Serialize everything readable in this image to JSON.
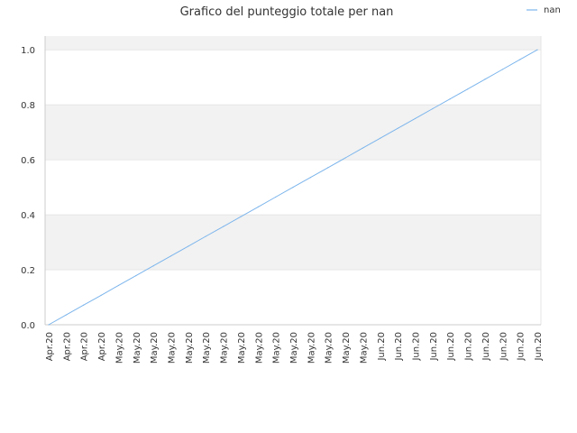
{
  "chart_data": {
    "type": "line",
    "title": "Grafico del punteggio totale per nan",
    "xlabel": "",
    "ylabel": "",
    "categories": [
      "Apr.20",
      "Apr.20",
      "Apr.20",
      "Apr.20",
      "May.20",
      "May.20",
      "May.20",
      "May.20",
      "May.20",
      "May.20",
      "May.20",
      "May.20",
      "May.20",
      "May.20",
      "May.20",
      "May.20",
      "May.20",
      "May.20",
      "May.20",
      "Jun.20",
      "Jun.20",
      "Jun.20",
      "Jun.20",
      "Jun.20",
      "Jun.20",
      "Jun.20",
      "Jun.20",
      "Jun.20",
      "Jun.20"
    ],
    "ylim": [
      0,
      1.05
    ],
    "yticks": [
      "0.0",
      "0.2",
      "0.4",
      "0.6",
      "0.8",
      "1.0"
    ],
    "ytick_values": [
      0,
      0.2,
      0.4,
      0.6,
      0.8,
      1.0
    ],
    "grid": "horizontal alternating bands",
    "legend_position": "top-right",
    "series": [
      {
        "name": "nan",
        "color": "#7cb5ec",
        "values": [
          0.0,
          0.0357,
          0.0714,
          0.1071,
          0.1429,
          0.1786,
          0.2143,
          0.25,
          0.2857,
          0.3214,
          0.3571,
          0.3929,
          0.4286,
          0.4643,
          0.5,
          0.5357,
          0.5714,
          0.6071,
          0.6429,
          0.6786,
          0.7143,
          0.75,
          0.7857,
          0.8214,
          0.8571,
          0.8929,
          0.9286,
          0.9643,
          1.0
        ]
      }
    ],
    "colors": {
      "band": "#f2f2f2",
      "gridline": "#e6e6e6",
      "axis": "#cccccc"
    }
  }
}
